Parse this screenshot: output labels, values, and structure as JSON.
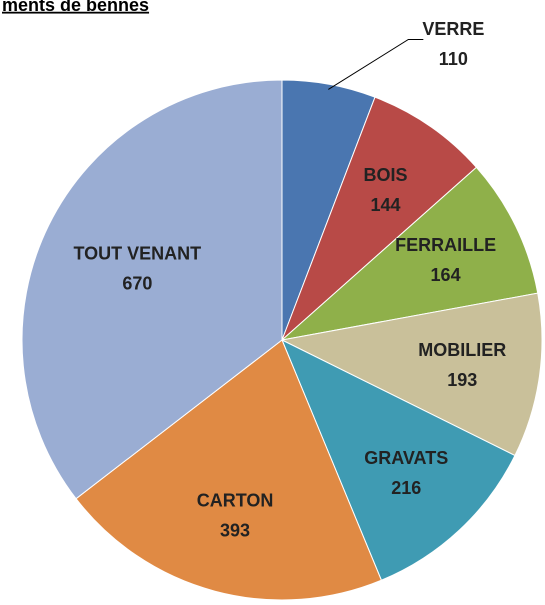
{
  "chart_data": {
    "type": "pie",
    "title": "ments de bennes",
    "categories": [
      "VERRE",
      "BOIS",
      "FERRAILLE",
      "MOBILIER",
      "GRAVATS",
      "CARTON",
      "TOUT VENANT"
    ],
    "values": [
      110,
      144,
      164,
      193,
      216,
      393,
      670
    ],
    "colors": [
      "#4a76b0",
      "#b84a47",
      "#8fb04a",
      "#c9c09a",
      "#3f9bb3",
      "#e08a44",
      "#9aadd3"
    ]
  }
}
